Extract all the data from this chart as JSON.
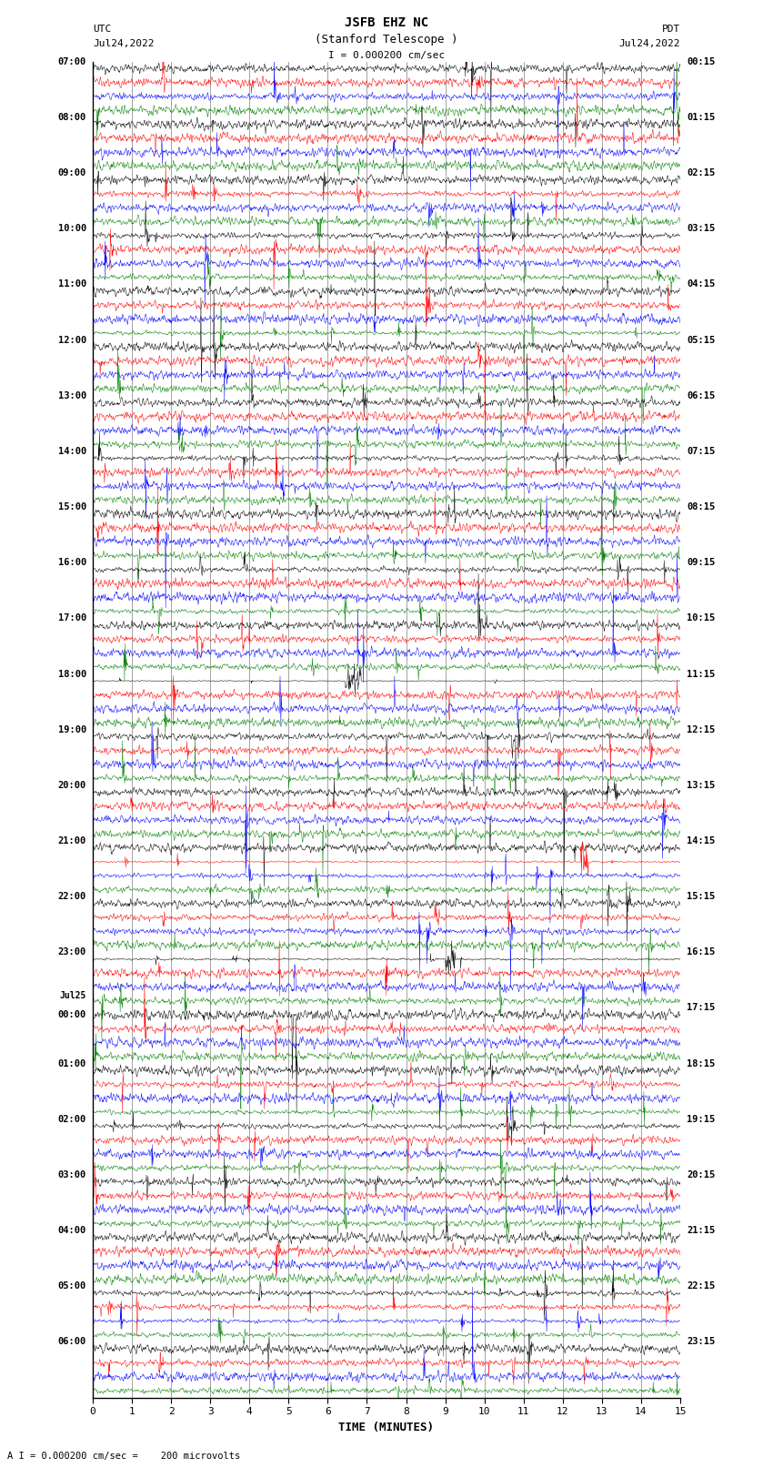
{
  "title_line1": "JSFB EHZ NC",
  "title_line2": "(Stanford Telescope )",
  "scale_label": "I = 0.000200 cm/sec",
  "utc_line1": "UTC",
  "utc_line2": "Jul24,2022",
  "pdt_line1": "PDT",
  "pdt_line2": "Jul24,2022",
  "xlabel": "TIME (MINUTES)",
  "bottom_label": "A I = 0.000200 cm/sec =    200 microvolts",
  "left_times": [
    "07:00",
    "08:00",
    "09:00",
    "10:00",
    "11:00",
    "12:00",
    "13:00",
    "14:00",
    "15:00",
    "16:00",
    "17:00",
    "18:00",
    "19:00",
    "20:00",
    "21:00",
    "22:00",
    "23:00",
    "Jul25\n00:00",
    "01:00",
    "02:00",
    "03:00",
    "04:00",
    "05:00",
    "06:00"
  ],
  "right_times": [
    "00:15",
    "01:15",
    "02:15",
    "03:15",
    "04:15",
    "05:15",
    "06:15",
    "07:15",
    "08:15",
    "09:15",
    "10:15",
    "11:15",
    "12:15",
    "13:15",
    "14:15",
    "15:15",
    "16:15",
    "17:15",
    "18:15",
    "19:15",
    "20:15",
    "21:15",
    "22:15",
    "23:15"
  ],
  "n_rows": 24,
  "traces_per_row": 4,
  "colors": [
    "black",
    "red",
    "blue",
    "green"
  ],
  "bg_color": "white",
  "fig_width": 8.5,
  "fig_height": 16.13,
  "dpi": 100,
  "xlim": [
    0,
    15
  ],
  "xticks": [
    0,
    1,
    2,
    3,
    4,
    5,
    6,
    7,
    8,
    9,
    10,
    11,
    12,
    13,
    14,
    15
  ],
  "noise_amplitude": 0.18,
  "spike_prob": 0.003
}
